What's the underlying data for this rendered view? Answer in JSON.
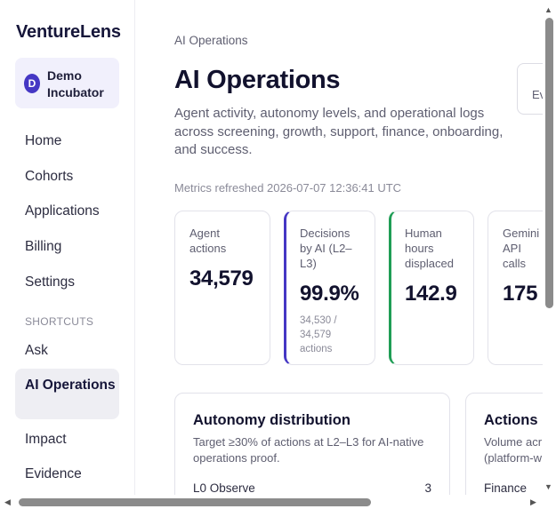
{
  "sidebar": {
    "brand": "VentureLens",
    "workspace": {
      "initial": "D",
      "name": "Demo Incubator"
    },
    "nav": [
      "Home",
      "Cohorts",
      "Applications",
      "Billing",
      "Settings"
    ],
    "shortcuts_label": "SHORTCUTS",
    "shortcuts": [
      "Ask",
      "AI Operations",
      "Impact",
      "Evidence"
    ],
    "active": "AI Operations"
  },
  "main": {
    "breadcrumb": "AI Operations",
    "title": "AI Operations",
    "subtitle": "Agent activity, autonomy levels, and operational logs across screening, growth, support, finance, onboarding, and success.",
    "refreshed": "Metrics refreshed 2026-07-07 12:36:41 UTC",
    "export_button": "Ev ex",
    "stats": [
      {
        "label": "Agent actions",
        "value": "34,579",
        "note": ""
      },
      {
        "label": "Decisions by AI (L2–L3)",
        "value": "99.9%",
        "note": "34,530 / 34,579 actions"
      },
      {
        "label": "Human hours displaced",
        "value": "142.9",
        "note": ""
      },
      {
        "label": "Gemini API calls",
        "value": "175",
        "note": ""
      }
    ],
    "panels": [
      {
        "title": "Autonomy distribution",
        "description": "Target ≥30% of actions at L2–L3 for AI-native operations proof.",
        "row_label": "L0 Observe",
        "row_value": "3"
      },
      {
        "title": "Actions b",
        "description": "Volume acr (platform-w",
        "row_label": "Finance",
        "row_value": ""
      }
    ]
  },
  "colors": {
    "accent": "#4537c4",
    "success": "#1f9d55"
  }
}
